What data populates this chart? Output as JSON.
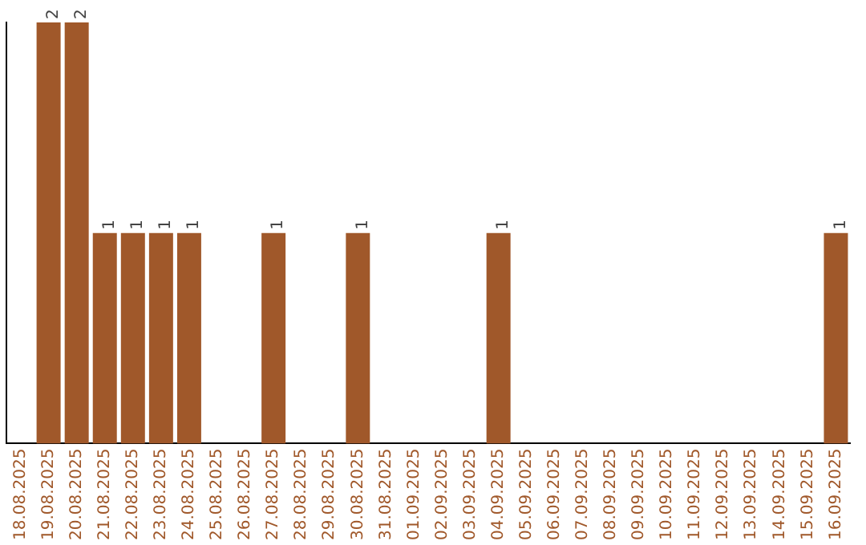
{
  "chart_data": {
    "type": "bar",
    "categories": [
      "18.08.2025",
      "19.08.2025",
      "20.08.2025",
      "21.08.2025",
      "22.08.2025",
      "23.08.2025",
      "24.08.2025",
      "25.08.2025",
      "26.08.2025",
      "27.08.2025",
      "28.08.2025",
      "29.08.2025",
      "30.08.2025",
      "31.08.2025",
      "01.09.2025",
      "02.09.2025",
      "03.09.2025",
      "04.09.2025",
      "05.09.2025",
      "06.09.2025",
      "07.09.2025",
      "08.09.2025",
      "09.09.2025",
      "10.09.2025",
      "11.09.2025",
      "12.09.2025",
      "13.09.2025",
      "14.09.2025",
      "15.09.2025",
      "16.09.2025"
    ],
    "values": [
      0,
      2,
      2,
      1,
      1,
      1,
      1,
      0,
      0,
      1,
      0,
      0,
      1,
      0,
      0,
      0,
      0,
      1,
      0,
      0,
      0,
      0,
      0,
      0,
      0,
      0,
      0,
      0,
      0,
      1
    ],
    "value_labels": [
      null,
      "2",
      "2",
      "1",
      "1",
      "1",
      "1",
      null,
      null,
      "1",
      null,
      null,
      "1",
      null,
      null,
      null,
      null,
      "1",
      null,
      null,
      null,
      null,
      null,
      null,
      null,
      null,
      null,
      null,
      null,
      "1"
    ],
    "color": "#a0582a",
    "grid": false,
    "legend": false,
    "tick_labels": "x"
  }
}
